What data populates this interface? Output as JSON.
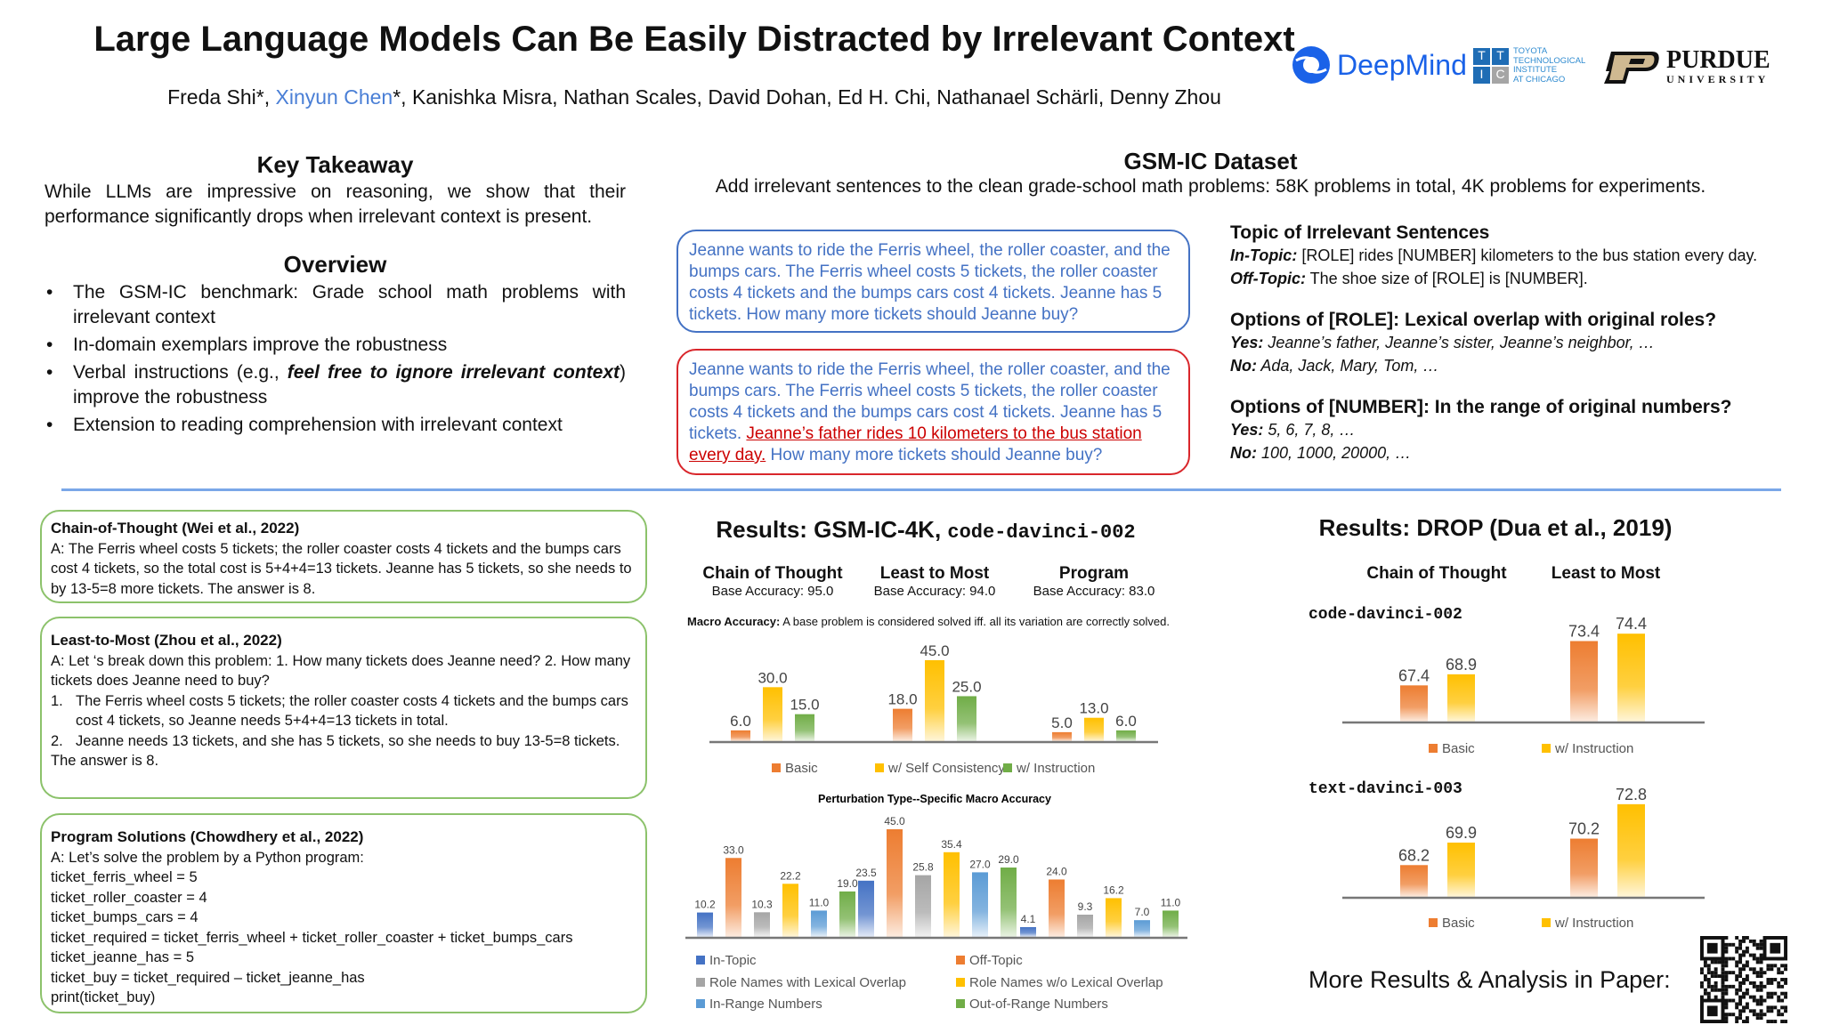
{
  "header": {
    "title": "Large Language Models Can Be Easily Distracted by Irrelevant Context",
    "authors": [
      {
        "name": "Freda Shi*",
        "highlight": false
      },
      {
        "name": "Xinyun Chen",
        "highlight": true,
        "suffix": "*"
      },
      {
        "name": "Kanishka Misra"
      },
      {
        "name": "Nathan Scales"
      },
      {
        "name": "David Dohan"
      },
      {
        "name": "Ed H. Chi"
      },
      {
        "name": "Nathanael Schärli"
      },
      {
        "name": "Denny Zhou"
      }
    ],
    "authors_line_a": "Freda Shi*, ",
    "authors_line_b": "Xinyun Chen",
    "authors_line_c": "*, Kanishka Misra, Nathan Scales, David Dohan, Ed H. Chi, Nathanael Schärli, Denny Zhou",
    "logos": {
      "deepmind": "DeepMind",
      "ttic_letters": [
        "T",
        "T",
        "I",
        "C"
      ],
      "ttic_text": [
        "TOYOTA",
        "TECHNOLOGICAL",
        "INSTITUTE",
        "AT CHICAGO"
      ],
      "purdue": "PURDUE",
      "purdue_sub": "UNIVERSITY"
    }
  },
  "takeaway": {
    "heading": "Key Takeaway",
    "text": "While LLMs are impressive on reasoning, we show that their performance significantly drops when irrelevant context is present."
  },
  "overview": {
    "heading": "Overview",
    "items": [
      "The GSM-IC benchmark: Grade school math problems with irrelevant context",
      "In-domain exemplars improve the robustness",
      "Verbal instructions (e.g., ",
      "feel free to ignore irrelevant context",
      ") improve the robustness",
      "Extension to reading comprehension with irrelevant context"
    ]
  },
  "dataset": {
    "heading": "GSM-IC Dataset",
    "subtitle": "Add irrelevant sentences to the clean grade-school math problems: 58K problems in total, 4K problems for experiments.",
    "clean": "Jeanne wants to ride the Ferris wheel, the roller coaster, and the bumps cars. The Ferris wheel costs 5 tickets, the roller coaster costs 4 tickets and the bumps cars cost 4 tickets. Jeanne has 5 tickets. How many more tickets should Jeanne buy?",
    "mod_a": "Jeanne wants to ride the Ferris wheel, the roller coaster, and the bumps cars. The Ferris wheel costs 5 tickets, the roller coaster costs 4 tickets and the bumps cars cost 4 tickets. Jeanne has 5 tickets. ",
    "mod_irrelevant": "Jeanne’s father rides 10 kilometers to the bus station every day.",
    "mod_b": " How many more tickets should Jeanne buy?",
    "topic_heading": "Topic of Irrelevant Sentences",
    "in_label": "In-Topic:",
    "in_text": " [ROLE] rides [NUMBER] kilometers to the bus station every day.",
    "off_label": "Off-Topic:",
    "off_text": " The shoe size of [ROLE] is [NUMBER].",
    "role_heading": "Options of [ROLE]: Lexical overlap with original roles?",
    "role_yes_label": "Yes:",
    "role_yes": " Jeanne’s father, Jeanne’s sister, Jeanne’s neighbor, …",
    "role_no_label": "No:",
    "role_no": " Ada, Jack, Mary, Tom, …",
    "num_heading": "Options of [NUMBER]: In the range of original numbers?",
    "num_yes_label": "Yes:",
    "num_yes": " 5, 6, 7, 8, …",
    "num_no_label": "No:",
    "num_no": " 100, 1000, 20000, …"
  },
  "prompts": [
    {
      "title": "Chain-of-Thought (Wei et al., 2022)",
      "lines": [
        "A: The Ferris wheel costs 5 tickets; the roller coaster costs 4 tickets and the bumps cars cost 4 tickets, so the total cost is 5+4+4=13 tickets. Jeanne has 5 tickets, so she needs to by 13-5=8 more tickets. The answer is 8."
      ]
    },
    {
      "title": "Least-to-Most (Zhou et al., 2022)",
      "intro": "A: Let ‘s break down this problem: 1. How many tickets does Jeanne need? 2. How many tickets does Jeanne need to buy?",
      "steps": [
        "The Ferris wheel costs 5 tickets; the roller coaster costs 4 tickets and the bumps cars cost 4 tickets, so Jeanne needs 5+4+4=13 tickets in total.",
        "Jeanne needs 13 tickets, and she has 5 tickets, so she needs to buy 13-5=8 tickets."
      ],
      "step_nums": [
        "1.",
        "2."
      ],
      "outro": "The answer is 8."
    },
    {
      "title": "Program Solutions (Chowdhery et al., 2022)",
      "lines": [
        "A: Let’s solve the problem by a Python program:",
        "ticket_ferris_wheel = 5",
        "ticket_roller_coaster = 4",
        "ticket_bumps_cars = 4",
        "ticket_required = ticket_ferris_wheel + ticket_roller_coaster + ticket_bumps_cars",
        "ticket_jeanne_has = 5",
        "ticket_buy = ticket_required – ticket_jeanne_has",
        "print(ticket_buy)"
      ]
    }
  ],
  "results_gsm": {
    "heading": "Results: GSM-IC-4K, ",
    "model": "code-davinci-002",
    "methods": [
      {
        "name": "Chain of Thought",
        "base": "Base Accuracy: 95.0"
      },
      {
        "name": "Least to Most",
        "base": "Base Accuracy: 94.0"
      },
      {
        "name": "Program",
        "base": "Base Accuracy: 83.0"
      }
    ],
    "note_label": "Macro Accuracy:",
    "note": " A base problem is considered solved  iff. all its variation are correctly solved."
  },
  "results_drop": {
    "heading": "Results: DROP (Dua et al., 2019)",
    "methods": [
      "Chain of Thought",
      "Least to Most"
    ]
  },
  "more": {
    "text": "More Results & Analysis in Paper:"
  },
  "colors": {
    "orange": "#ED7D31",
    "yellow": "#FFC000",
    "green": "#70AD47",
    "blue": "#4472C4",
    "gray": "#A5A5A5",
    "lightblue": "#5B9BD5"
  },
  "chart_data": [
    {
      "type": "bar",
      "title": "Macro Accuracy",
      "categories": [
        "Chain of Thought",
        "Least to Most",
        "Program"
      ],
      "ylim": [
        0,
        50
      ],
      "series": [
        {
          "name": "Basic",
          "color": "#ED7D31",
          "values": [
            6.0,
            18.0,
            5.0
          ]
        },
        {
          "name": "w/ Self Consistency",
          "color": "#FFC000",
          "values": [
            30.0,
            45.0,
            13.0
          ]
        },
        {
          "name": "w/ Instruction",
          "color": "#70AD47",
          "values": [
            15.0,
            25.0,
            6.0
          ]
        }
      ],
      "legend": "bottom"
    },
    {
      "type": "bar",
      "title": "Perturbation Type--Specific Macro Accuracy",
      "categories": [
        "Chain of Thought",
        "Least to Most",
        "Program"
      ],
      "ylim": [
        0,
        50
      ],
      "series": [
        {
          "name": "In-Topic",
          "color": "#4472C4",
          "values": [
            10.2,
            23.5,
            4.1
          ]
        },
        {
          "name": "Off-Topic",
          "color": "#ED7D31",
          "values": [
            33.0,
            45.0,
            24.0
          ]
        },
        {
          "name": "Role Names with Lexical Overlap",
          "color": "#A5A5A5",
          "values": [
            10.3,
            25.8,
            9.3
          ]
        },
        {
          "name": "Role Names w/o Lexical Overlap",
          "color": "#FFC000",
          "values": [
            22.2,
            35.4,
            16.2
          ]
        },
        {
          "name": "In-Range Numbers",
          "color": "#5B9BD5",
          "values": [
            11.0,
            27.0,
            7.0
          ]
        },
        {
          "name": "Out-of-Range Numbers",
          "color": "#70AD47",
          "values": [
            19.0,
            29.0,
            11.0
          ]
        }
      ],
      "legend": "bottom"
    },
    {
      "type": "bar",
      "title": "code-davinci-002",
      "categories": [
        "Chain of Thought",
        "Least to Most"
      ],
      "ylim": [
        62.5,
        76
      ],
      "series": [
        {
          "name": "Basic",
          "color": "#ED7D31",
          "values": [
            67.4,
            73.4
          ]
        },
        {
          "name": "w/ Instruction",
          "color": "#FFC000",
          "values": [
            68.9,
            74.4
          ]
        }
      ],
      "legend": "bottom"
    },
    {
      "type": "bar",
      "title": "text-davinci-003",
      "categories": [
        "Chain of Thought",
        "Least to Most"
      ],
      "ylim": [
        65.8,
        74
      ],
      "series": [
        {
          "name": "Basic",
          "color": "#ED7D31",
          "values": [
            68.2,
            70.2
          ]
        },
        {
          "name": "w/ Instruction",
          "color": "#FFC000",
          "values": [
            69.9,
            72.8
          ]
        }
      ],
      "legend": "bottom"
    }
  ]
}
